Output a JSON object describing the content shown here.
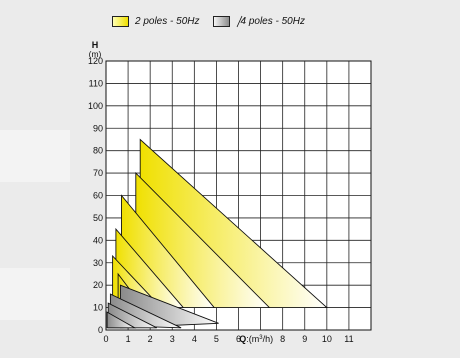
{
  "legend": [
    {
      "label": "2 poles - 50Hz",
      "color": "#f0e000"
    },
    {
      "label": "4 poles - 50Hz",
      "color": "#8a8a8a"
    }
  ],
  "chart_data": {
    "type": "area",
    "xlabel_name": "Q",
    "xlabel_unit_prefix": ":(m",
    "xlabel_unit_sup": "3",
    "xlabel_unit_suffix": "/h)",
    "ylabel_name": "H",
    "ylabel_unit": "(m)",
    "xlim": [
      0,
      12
    ],
    "ylim": [
      0,
      120
    ],
    "x_ticks": [
      "0",
      "1",
      "2",
      "3",
      "4",
      "5",
      "6",
      "",
      "8",
      "9",
      "10",
      "11"
    ],
    "y_ticks": [
      "0",
      "10",
      "20",
      "30",
      "40",
      "50",
      "60",
      "70",
      "80",
      "90",
      "100",
      "110",
      "120"
    ],
    "grid": true,
    "series": [
      {
        "name": "2 poles - 50Hz",
        "regions": [
          [
            [
              1.55,
              10
            ],
            [
              1.55,
              85
            ],
            [
              10.0,
              10
            ]
          ],
          [
            [
              1.35,
              10
            ],
            [
              1.35,
              70
            ],
            [
              7.4,
              10
            ]
          ],
          [
            [
              0.7,
              10
            ],
            [
              0.7,
              60
            ],
            [
              4.9,
              10
            ]
          ],
          [
            [
              0.45,
              10
            ],
            [
              0.45,
              45
            ],
            [
              3.5,
              10
            ]
          ],
          [
            [
              0.3,
              10
            ],
            [
              0.3,
              33
            ],
            [
              2.5,
              10
            ]
          ],
          [
            [
              0.55,
              10
            ],
            [
              0.55,
              25
            ],
            [
              1.7,
              10
            ]
          ]
        ]
      },
      {
        "name": "4 poles - 50Hz",
        "regions": [
          [
            [
              0.65,
              1
            ],
            [
              0.65,
              20
            ],
            [
              5.1,
              3
            ]
          ],
          [
            [
              0.2,
              2
            ],
            [
              0.2,
              16
            ],
            [
              3.4,
              1
            ]
          ],
          [
            [
              0.1,
              1
            ],
            [
              0.1,
              12
            ],
            [
              2.3,
              1
            ]
          ],
          [
            [
              0.05,
              1
            ],
            [
              0.05,
              8
            ],
            [
              1.3,
              1
            ]
          ]
        ]
      }
    ]
  }
}
